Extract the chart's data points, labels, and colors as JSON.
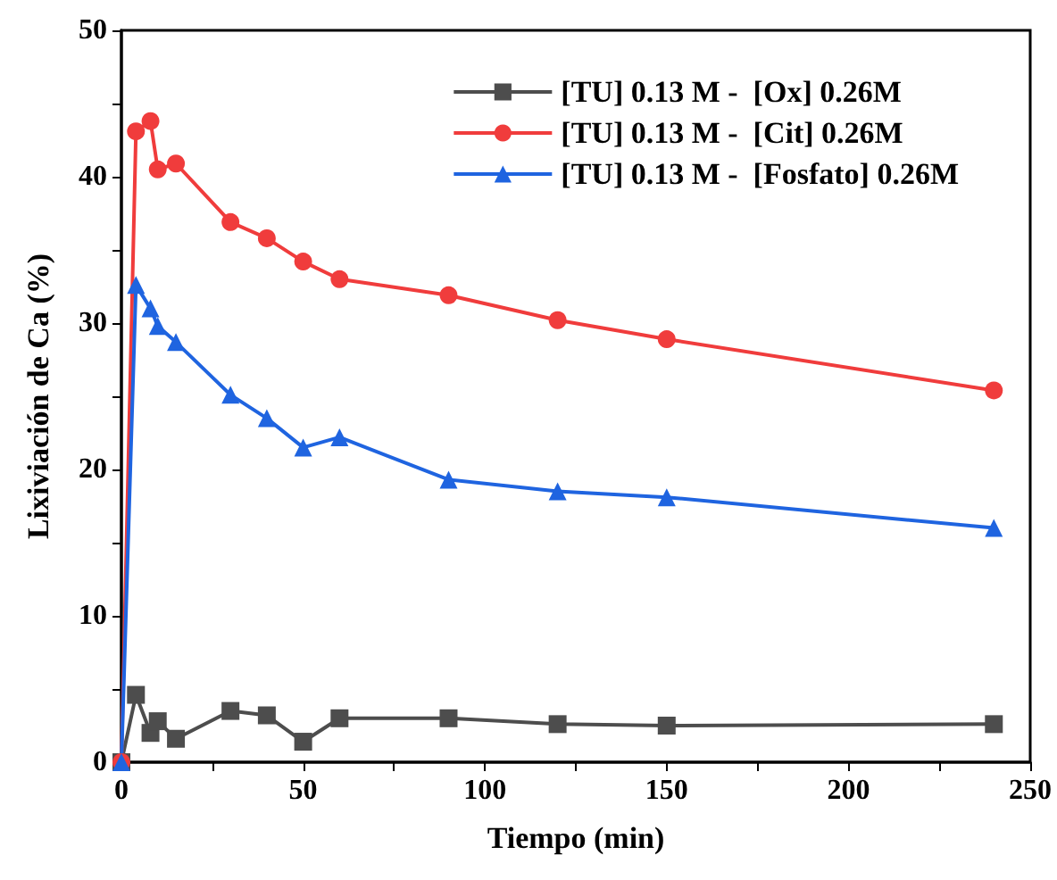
{
  "chart_data": {
    "type": "line",
    "xlabel": "Tiempo (min)",
    "ylabel": "Lixiviación de Ca (%)",
    "x": [
      0,
      4,
      8,
      10,
      15,
      30,
      40,
      50,
      60,
      90,
      120,
      150,
      240
    ],
    "series": [
      {
        "name": "[TU] 0.13 M -  [Ox] 0.26M",
        "color": "#4d4d4d",
        "marker": "square",
        "values": [
          0,
          4.6,
          2.0,
          2.8,
          1.6,
          3.5,
          3.2,
          1.4,
          3.0,
          3.0,
          2.6,
          2.5,
          2.6
        ]
      },
      {
        "name": "[TU] 0.13 M -  [Cit] 0.26M",
        "color": "#f03c3c",
        "marker": "circle",
        "values": [
          0,
          43.1,
          43.8,
          40.5,
          40.9,
          36.9,
          35.8,
          34.2,
          33.0,
          31.9,
          30.2,
          28.9,
          25.4
        ]
      },
      {
        "name": "[TU] 0.13 M -  [Fosfato] 0.26M",
        "color": "#1f64e0",
        "marker": "triangle",
        "values": [
          0,
          32.6,
          31.0,
          29.8,
          28.7,
          25.1,
          23.5,
          21.5,
          22.2,
          19.3,
          18.5,
          18.1,
          16.0
        ]
      }
    ],
    "xlim": [
      0,
      250
    ],
    "xticks": [
      0,
      {
        "value": 25,
        "label": null
      },
      50,
      {
        "value": 75,
        "label": null
      },
      100,
      {
        "value": 125,
        "label": null
      },
      150,
      {
        "value": 175,
        "label": null
      },
      200,
      {
        "value": 225,
        "label": null
      },
      250
    ],
    "ylim": [
      0,
      50
    ],
    "yticks": [
      0,
      {
        "value": 5,
        "label": null
      },
      10,
      {
        "value": 15,
        "label": null
      },
      20,
      {
        "value": 25,
        "label": null
      },
      30,
      {
        "value": 35,
        "label": null
      },
      40,
      {
        "value": 45,
        "label": null
      },
      50
    ],
    "grid": false,
    "legend": "top right",
    "line_style": "solid"
  }
}
